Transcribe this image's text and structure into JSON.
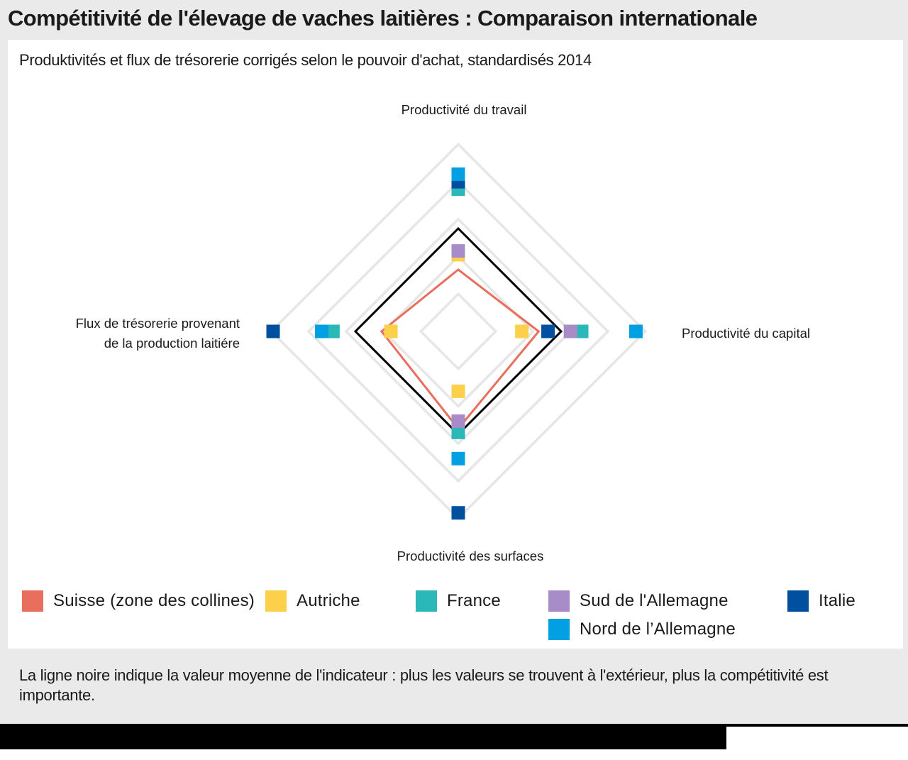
{
  "title": "Compétitivité de l'élevage de vaches laitières : Comparaison internationale",
  "subtitle": "Produktivités et flux de trésorerie corrigés selon le pouvoir d'achat, standardisés 2014",
  "note": "La ligne noire indique la valeur moyenne de l'indicateur : plus les valeurs se trouvent à l'extérieur, plus la compétitivité est importante.",
  "chart_data": {
    "type": "radar",
    "axes": [
      {
        "key": "travail",
        "label": [
          "Productivité du travail"
        ]
      },
      {
        "key": "capital",
        "label": [
          "Productivité du capital"
        ]
      },
      {
        "key": "surfaces",
        "label": [
          "Productivité des surfaces"
        ]
      },
      {
        "key": "flux",
        "label": [
          "Flux de trésorerie provenant",
          "de la production laitiére"
        ]
      }
    ],
    "range": [
      0,
      1.1
    ],
    "grid_rings": [
      0.2,
      0.4,
      0.6,
      0.8,
      1.0
    ],
    "reference_line": {
      "name": "Moyenne",
      "color": "#000000",
      "values": {
        "travail": 0.55,
        "capital": 0.55,
        "surfaces": 0.55,
        "flux": 0.55
      }
    },
    "series": [
      {
        "name": "Suisse (zone des collines)",
        "color": "#ea6e5e",
        "style": "line",
        "values": {
          "travail": 0.33,
          "capital": 0.43,
          "surfaces": 0.52,
          "flux": 0.41
        }
      },
      {
        "name": "Autriche",
        "color": "#fdd04c",
        "style": "marker",
        "values": {
          "travail": 0.41,
          "capital": 0.34,
          "surfaces": 0.32,
          "flux": 0.36
        }
      },
      {
        "name": "France",
        "color": "#2ab8b9",
        "style": "marker",
        "values": {
          "travail": 0.76,
          "capital": 0.66,
          "surfaces": 0.54,
          "flux": 0.67
        }
      },
      {
        "name": "Sud de l'Allemagne",
        "color": "#a88cc8",
        "style": "marker",
        "values": {
          "travail": 0.43,
          "capital": 0.6,
          "surfaces": 0.48,
          "flux": null
        }
      },
      {
        "name": "Italie",
        "color": "#0150a0",
        "style": "marker",
        "values": {
          "travail": 0.8,
          "capital": 0.48,
          "surfaces": 0.97,
          "flux": 0.99
        }
      },
      {
        "name": "Nord de l’Allemagne",
        "color": "#00a0e2",
        "style": "marker",
        "values": {
          "travail": 0.84,
          "capital": 0.95,
          "surfaces": 0.68,
          "flux": 0.73
        }
      }
    ],
    "legend": {
      "position": "bottom"
    }
  }
}
